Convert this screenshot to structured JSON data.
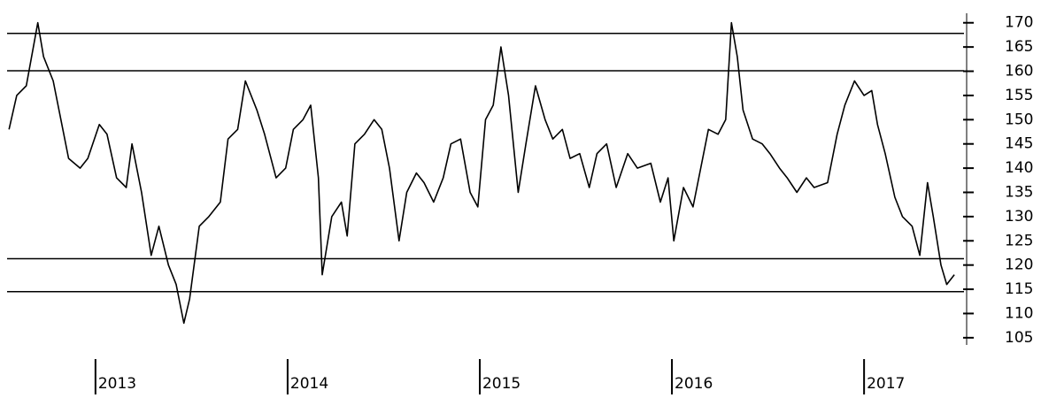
{
  "chart_data": {
    "type": "line",
    "color": "#000000",
    "x": [
      2012.55,
      2012.59,
      2012.64,
      2012.7,
      2012.73,
      2012.78,
      2012.82,
      2012.86,
      2012.92,
      2012.96,
      2013.02,
      2013.06,
      2013.11,
      2013.16,
      2013.19,
      2013.24,
      2013.29,
      2013.33,
      2013.38,
      2013.42,
      2013.46,
      2013.49,
      2013.54,
      2013.59,
      2013.65,
      2013.69,
      2013.74,
      2013.78,
      2013.84,
      2013.88,
      2013.94,
      2013.99,
      2014.03,
      2014.08,
      2014.12,
      2014.16,
      2014.18,
      2014.23,
      2014.28,
      2014.31,
      2014.35,
      2014.4,
      2014.45,
      2014.49,
      2014.53,
      2014.58,
      2014.62,
      2014.67,
      2014.71,
      2014.76,
      2014.81,
      2014.85,
      2014.9,
      2014.95,
      2014.99,
      2015.03,
      2015.07,
      2015.11,
      2015.15,
      2015.2,
      2015.24,
      2015.29,
      2015.34,
      2015.38,
      2015.43,
      2015.47,
      2015.52,
      2015.57,
      2015.61,
      2015.66,
      2015.71,
      2015.77,
      2015.82,
      2015.89,
      2015.94,
      2015.98,
      2016.01,
      2016.06,
      2016.11,
      2016.15,
      2016.19,
      2016.24,
      2016.28,
      2016.31,
      2016.34,
      2016.37,
      2016.42,
      2016.47,
      2016.51,
      2016.56,
      2016.6,
      2016.65,
      2016.7,
      2016.74,
      2016.81,
      2016.86,
      2016.9,
      2016.95,
      2017.0,
      2017.04,
      2017.07,
      2017.11,
      2017.16,
      2017.2,
      2017.25,
      2017.29,
      2017.33,
      2017.36,
      2017.4,
      2017.43,
      2017.47
    ],
    "values": [
      148,
      155,
      157,
      170,
      163,
      158,
      150,
      142,
      140,
      142,
      149,
      147,
      138,
      136,
      145,
      135,
      122,
      128,
      120,
      116,
      108,
      113,
      128,
      130,
      133,
      146,
      148,
      158,
      152,
      147,
      138,
      140,
      148,
      150,
      153,
      138,
      118,
      130,
      133,
      126,
      145,
      147,
      150,
      148,
      140,
      125,
      135,
      139,
      137,
      133,
      138,
      145,
      146,
      135,
      132,
      150,
      153,
      165,
      155,
      135,
      145,
      157,
      150,
      146,
      148,
      142,
      143,
      136,
      143,
      145,
      136,
      143,
      140,
      141,
      133,
      138,
      125,
      136,
      132,
      140,
      148,
      147,
      150,
      170,
      163,
      152,
      146,
      145,
      143,
      140,
      138,
      135,
      138,
      136,
      137,
      147,
      153,
      158,
      155,
      156,
      149,
      143,
      134,
      130,
      128,
      122,
      137,
      130,
      120,
      116,
      118
    ],
    "hlines": [
      167.8,
      160.1,
      121.3,
      114.5
    ],
    "xlim": [
      2012.54,
      2017.52
    ],
    "xticks": [
      2013,
      2014,
      2015,
      2016,
      2017
    ],
    "ylim": [
      102.6,
      174.7
    ],
    "yticks": [
      105,
      110,
      115,
      120,
      125,
      130,
      135,
      140,
      145,
      150,
      155,
      160,
      165,
      170
    ]
  }
}
